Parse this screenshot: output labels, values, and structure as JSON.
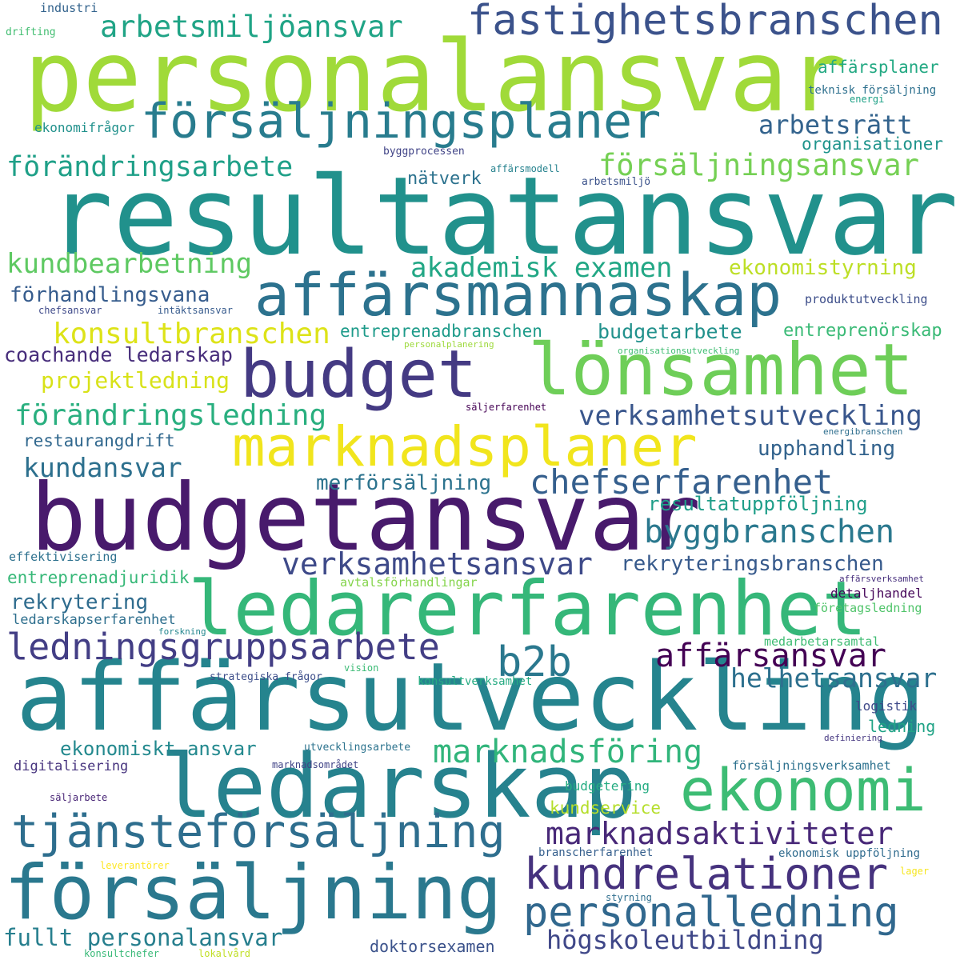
{
  "words": [
    {
      "text": "resultatansvar",
      "color": "#21918c"
    },
    {
      "text": "personalansvar",
      "color": "#a0da39"
    },
    {
      "text": "affärsutveckling",
      "color": "#25848e"
    },
    {
      "text": "budgetansvar",
      "color": "#481a6c"
    },
    {
      "text": "ledarskap",
      "color": "#26828e"
    },
    {
      "text": "ledarerfarenhet",
      "color": "#35b779"
    },
    {
      "text": "försäljning",
      "color": "#2a788e"
    },
    {
      "text": "affärsmannaskap",
      "color": "#2c728e"
    },
    {
      "text": "lönsamhet",
      "color": "#6ece58"
    },
    {
      "text": "marknadsplaner",
      "color": "#f1e51d"
    },
    {
      "text": "budget",
      "color": "#443a83"
    },
    {
      "text": "försäljningsplaner",
      "color": "#287c8e"
    },
    {
      "text": "fastighetsbranschen",
      "color": "#3b528b"
    },
    {
      "text": "ekonomi",
      "color": "#3dbc74"
    },
    {
      "text": "tjänsteförsäljning",
      "color": "#2e6e8e"
    },
    {
      "text": "kundrelationer",
      "color": "#46327e"
    },
    {
      "text": "personalledning",
      "color": "#31688e"
    },
    {
      "text": "b2b",
      "color": "#2a788e"
    },
    {
      "text": "ledningsgruppsarbete",
      "color": "#433e85"
    },
    {
      "text": "chefserfarenhet",
      "color": "#355f8d"
    },
    {
      "text": "byggbranschen",
      "color": "#2a788e"
    },
    {
      "text": "marknadsaktiviteter",
      "color": "#482878"
    },
    {
      "text": "marknadsföring",
      "color": "#31b57b"
    },
    {
      "text": "verksamhetsutveckling",
      "color": "#39568c"
    },
    {
      "text": "affärsansvar",
      "color": "#440154"
    },
    {
      "text": "verksamhetsansvar",
      "color": "#3e4a89"
    },
    {
      "text": "förändringsledning",
      "color": "#29af7f"
    },
    {
      "text": "konsultbranschen",
      "color": "#dde318"
    },
    {
      "text": "arbetsmiljöansvar",
      "color": "#20a486"
    },
    {
      "text": "försäljningsansvar",
      "color": "#75d054"
    },
    {
      "text": "förändringsarbete",
      "color": "#1fa088"
    },
    {
      "text": "akademisk examen",
      "color": "#22a785"
    },
    {
      "text": "kundbearbetning",
      "color": "#5ec962"
    },
    {
      "text": "helhetsansvar",
      "color": "#2d708e"
    },
    {
      "text": "arbetsrätt",
      "color": "#33638d"
    },
    {
      "text": "kundansvar",
      "color": "#2d708e"
    },
    {
      "text": "fullt personalansvar",
      "color": "#277f8e"
    },
    {
      "text": "högskoleutbildning",
      "color": "#3f4788"
    },
    {
      "text": "projektledning",
      "color": "#d8e219"
    },
    {
      "text": "ekonomistyrning",
      "color": "#bddf26"
    },
    {
      "text": "förhandlingsvana",
      "color": "#365c8d"
    },
    {
      "text": "coachande ledarskap",
      "color": "#472d7b"
    },
    {
      "text": "budgetarbete",
      "color": "#21918c"
    },
    {
      "text": "entreprenadbranschen",
      "color": "#1e9b8a"
    },
    {
      "text": "entreprenörskap",
      "color": "#3aba76"
    },
    {
      "text": "merförsäljning",
      "color": "#2c738e"
    },
    {
      "text": "resultatuppföljning",
      "color": "#1f9e89"
    },
    {
      "text": "rekryteringsbranschen",
      "color": "#375a8c"
    },
    {
      "text": "upphandling",
      "color": "#33638d"
    },
    {
      "text": "ekonomiskt ansvar",
      "color": "#23898e"
    },
    {
      "text": "rekrytering",
      "color": "#2f6c8e"
    },
    {
      "text": "organisationer",
      "color": "#1f948c"
    },
    {
      "text": "nätverk",
      "color": "#2c728e"
    },
    {
      "text": "affärsplaner",
      "color": "#23a983"
    },
    {
      "text": "kundservice",
      "color": "#b5de2b"
    },
    {
      "text": "restaurangdrift",
      "color": "#31688e"
    },
    {
      "text": "entreprenadjuridik",
      "color": "#37b878"
    },
    {
      "text": "ledning",
      "color": "#20a386"
    },
    {
      "text": "doktorsexamen",
      "color": "#3b528b"
    },
    {
      "text": "ekonomifrågor",
      "color": "#21918c"
    },
    {
      "text": "ledarskapserfarenhet",
      "color": "#2e6f8e"
    },
    {
      "text": "digitalisering",
      "color": "#46337e"
    },
    {
      "text": "produktutveckling",
      "color": "#3d4e8a"
    },
    {
      "text": "detaljhandel",
      "color": "#450559"
    },
    {
      "text": "logistik",
      "color": "#3e4989"
    },
    {
      "text": "företagsledning",
      "color": "#50c46a"
    },
    {
      "text": "medarbetarsamtal",
      "color": "#3fbc73"
    },
    {
      "text": "budgetering",
      "color": "#25ac82"
    },
    {
      "text": "försäljningsverksamhet",
      "color": "#2c718e"
    },
    {
      "text": "branscherfarenhet",
      "color": "#355f8d"
    },
    {
      "text": "ekonomisk uppföljning",
      "color": "#2f6b8e"
    },
    {
      "text": "avtalsförhandlingar",
      "color": "#84d44b"
    },
    {
      "text": "effektivisering",
      "color": "#2d718e"
    },
    {
      "text": "konsultverksamhet",
      "color": "#25ab82"
    },
    {
      "text": "strategiska frågor",
      "color": "#3d4e8a"
    },
    {
      "text": "utvecklingsarbete",
      "color": "#2c738e"
    },
    {
      "text": "marknadsområdet",
      "color": "#414487"
    },
    {
      "text": "säljarbete",
      "color": "#482576"
    },
    {
      "text": "teknisk försäljning",
      "color": "#2d708e"
    },
    {
      "text": "energi",
      "color": "#1fa187"
    },
    {
      "text": "byggprocessen",
      "color": "#414487"
    },
    {
      "text": "affärsmodell",
      "color": "#26828e"
    },
    {
      "text": "arbetsmiljö",
      "color": "#3b528b"
    },
    {
      "text": "industri",
      "color": "#33638d"
    },
    {
      "text": "drifting",
      "color": "#42be71"
    },
    {
      "text": "chefsansvar",
      "color": "#3e4989"
    },
    {
      "text": "intäktsansvar",
      "color": "#375b8d"
    },
    {
      "text": "personalplanering",
      "color": "#9dd93b"
    },
    {
      "text": "organisationsutveckling",
      "color": "#40bd72"
    },
    {
      "text": "säljerfarenhet",
      "color": "#440154"
    },
    {
      "text": "energibranschen",
      "color": "#2e6e8e"
    },
    {
      "text": "affärsverksamhet",
      "color": "#472f7d"
    },
    {
      "text": "forskning",
      "color": "#24878e"
    },
    {
      "text": "vision",
      "color": "#3bbb75"
    },
    {
      "text": "definiering",
      "color": "#453781"
    },
    {
      "text": "leverantörer",
      "color": "#fde725"
    },
    {
      "text": "lager",
      "color": "#f6e620"
    },
    {
      "text": "styrning",
      "color": "#2e6e8e"
    },
    {
      "text": "konsultchefer",
      "color": "#38b977"
    },
    {
      "text": "lokalvård",
      "color": "#c0df25"
    }
  ]
}
